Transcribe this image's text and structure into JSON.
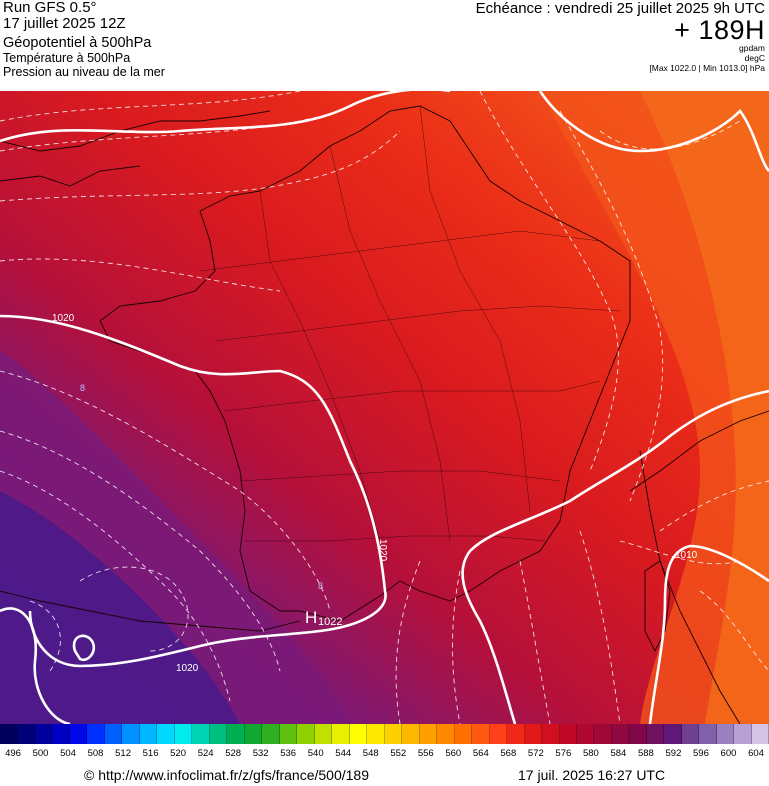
{
  "header": {
    "run": "Run GFS 0.5°",
    "date": "17 juillet 2025 12Z",
    "param1": "Géopotentiel à 500hPa",
    "param2": "Température à 500hPa",
    "param3": "Pression au niveau de la mer",
    "echeance": "Echéance : vendredi 25 juillet 2025 9h UTC",
    "hour": "+ 189H",
    "unit1": "gpdam",
    "unit2": "degC",
    "unit3": "[Max 1022.0 | Min 1013.0] hPa"
  },
  "map": {
    "labels": {
      "i1020a": "1020",
      "i1020b": "1020",
      "i1020c": "1020",
      "i1010": "1010",
      "high": "H",
      "high_value": "1022",
      "t8a": "8",
      "t8b": "8"
    }
  },
  "colors": {
    "deep_purple": "#4a1a8a",
    "purple": "#7a1a7a",
    "dark_red": "#b0103a",
    "red": "#d41a20",
    "bright_red": "#e82a18",
    "orange_red": "#f0461a",
    "orange": "#f4661a"
  },
  "scale": {
    "colors": [
      "#00005a",
      "#000078",
      "#00009c",
      "#0000c4",
      "#0008e8",
      "#0030ff",
      "#0060ff",
      "#0090ff",
      "#00b8ff",
      "#00d8ff",
      "#00ecec",
      "#00d4b4",
      "#00c080",
      "#00b050",
      "#10a830",
      "#30b020",
      "#60c010",
      "#90d000",
      "#c0e000",
      "#e8f000",
      "#ffff00",
      "#ffe800",
      "#ffd000",
      "#ffb800",
      "#ffa000",
      "#ff8800",
      "#ff7000",
      "#ff5810",
      "#ff4018",
      "#f02818",
      "#e01818",
      "#d01020",
      "#c00828",
      "#b00830",
      "#a00838",
      "#900840",
      "#800848",
      "#701060",
      "#601878",
      "#704090",
      "#8060a8",
      "#9a80c0",
      "#b8a0d4",
      "#d4c4e4"
    ],
    "ticks": [
      "496",
      "500",
      "504",
      "508",
      "512",
      "516",
      "520",
      "524",
      "528",
      "532",
      "536",
      "540",
      "544",
      "548",
      "552",
      "556",
      "560",
      "564",
      "568",
      "572",
      "576",
      "580",
      "584",
      "588",
      "592",
      "596",
      "600",
      "604"
    ]
  },
  "footer": {
    "url": "© http://www.infoclimat.fr/z/gfs/france/500/189",
    "date": "17 juil. 2025 16:27 UTC"
  }
}
